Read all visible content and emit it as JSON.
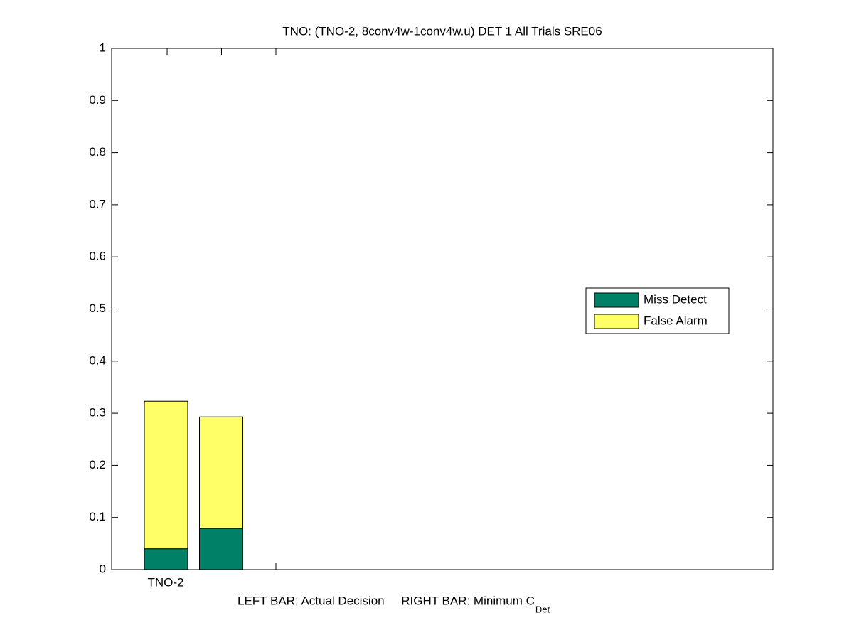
{
  "chart_data": {
    "type": "bar",
    "stacked": true,
    "title": "TNO: (TNO-2, 8conv4w-1conv4w.u) DET 1 All Trials SRE06",
    "xlabel": "LEFT BAR: Actual Decision     RIGHT BAR: Minimum C",
    "xlabel_subscript": "Det",
    "categories": [
      "TNO-2"
    ],
    "series": [
      {
        "name": "Miss Detect",
        "color": "#008066",
        "values": [
          [
            0.04,
            0.079
          ]
        ]
      },
      {
        "name": "False Alarm",
        "color": "#ffff66",
        "values": [
          [
            0.283,
            0.214
          ]
        ]
      }
    ],
    "ylim": [
      0,
      1
    ],
    "yticks": [
      0,
      0.1,
      0.2,
      0.3,
      0.4,
      0.5,
      0.6,
      0.7,
      0.8,
      0.9,
      1
    ],
    "legend": "east"
  }
}
